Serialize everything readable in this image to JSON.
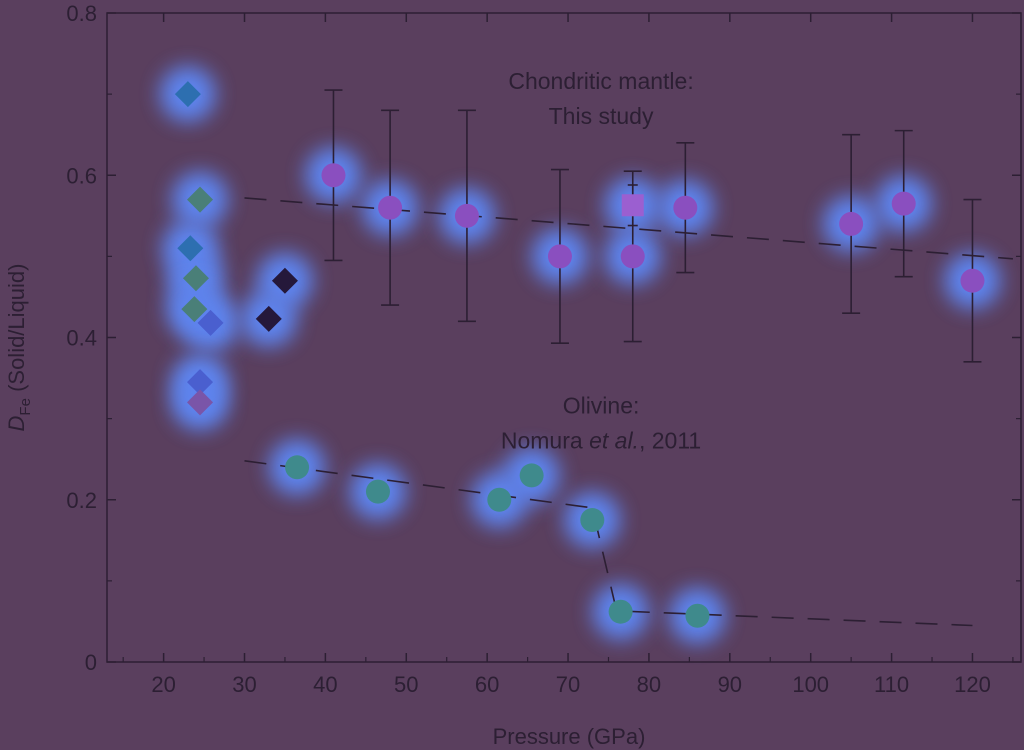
{
  "chart_data": {
    "type": "scatter",
    "xlabel": "Pressure (GPa)",
    "ylabel": {
      "main": "D",
      "sub": "Fe",
      "rest": " (Solid/Liquid)"
    },
    "xlim": [
      13,
      126
    ],
    "ylim": [
      0,
      0.8
    ],
    "xticks": [
      20,
      30,
      40,
      50,
      60,
      70,
      80,
      90,
      100,
      110,
      120
    ],
    "yticks": [
      0,
      0.2,
      0.4,
      0.6,
      0.8
    ],
    "ytick_labels": [
      "0",
      "0.2",
      "0.4",
      "0.6",
      "0.8"
    ],
    "grid": false,
    "annotations": [
      {
        "lines": [
          "Chondritic mantle:",
          "This study"
        ],
        "x": 70,
        "y": 0.72
      },
      {
        "lines": [
          "Olivine:",
          "Nomura et al., 2011"
        ],
        "x": 70,
        "y": 0.32
      }
    ],
    "series": [
      {
        "marker": "circle",
        "color": "#8a4fbf",
        "points": [
          {
            "x": 41,
            "y": 0.6,
            "err": 0.105
          },
          {
            "x": 48,
            "y": 0.56,
            "err": 0.12
          },
          {
            "x": 57.5,
            "y": 0.55,
            "err": 0.13
          },
          {
            "x": 69,
            "y": 0.5,
            "err": 0.107
          },
          {
            "x": 78,
            "y": 0.5,
            "err": 0.105
          },
          {
            "x": 84.5,
            "y": 0.56,
            "err": 0.08
          },
          {
            "x": 105,
            "y": 0.54,
            "err": 0.11
          },
          {
            "x": 111.5,
            "y": 0.565,
            "err": 0.09
          },
          {
            "x": 120,
            "y": 0.47,
            "err": 0.1
          }
        ]
      },
      {
        "marker": "square",
        "color": "#9b5fd0",
        "points": [
          {
            "x": 78,
            "y": 0.563,
            "err": 0.025
          }
        ]
      },
      {
        "marker": "circle",
        "color": "#3f8a8c",
        "points": [
          {
            "x": 36.5,
            "y": 0.24
          },
          {
            "x": 46.5,
            "y": 0.21
          },
          {
            "x": 61.5,
            "y": 0.2
          },
          {
            "x": 65.5,
            "y": 0.23
          },
          {
            "x": 73,
            "y": 0.175
          },
          {
            "x": 76.5,
            "y": 0.062
          },
          {
            "x": 86,
            "y": 0.057
          }
        ]
      },
      {
        "marker": "diamond",
        "color": "#2d6fb0",
        "points": [
          {
            "x": 23,
            "y": 0.7
          },
          {
            "x": 23.3,
            "y": 0.51
          }
        ]
      },
      {
        "marker": "diamond",
        "color": "#4a7f78",
        "points": [
          {
            "x": 24.5,
            "y": 0.57
          },
          {
            "x": 24,
            "y": 0.473
          },
          {
            "x": 23.8,
            "y": 0.435
          }
        ]
      },
      {
        "marker": "diamond",
        "color": "#4a5fcf",
        "points": [
          {
            "x": 25.8,
            "y": 0.418
          },
          {
            "x": 24.5,
            "y": 0.345
          }
        ]
      },
      {
        "marker": "diamond",
        "color": "#7a55a8",
        "points": [
          {
            "x": 24.5,
            "y": 0.32
          }
        ]
      },
      {
        "marker": "diamond",
        "color": "#25183a",
        "points": [
          {
            "x": 35,
            "y": 0.47
          },
          {
            "x": 33,
            "y": 0.423
          }
        ]
      }
    ],
    "fit_lines": [
      {
        "x": [
          30,
          125
        ],
        "y": [
          0.572,
          0.497
        ]
      },
      {
        "x": [
          30,
          73,
          76,
          120
        ],
        "y": [
          0.248,
          0.19,
          0.063,
          0.045
        ]
      }
    ]
  }
}
